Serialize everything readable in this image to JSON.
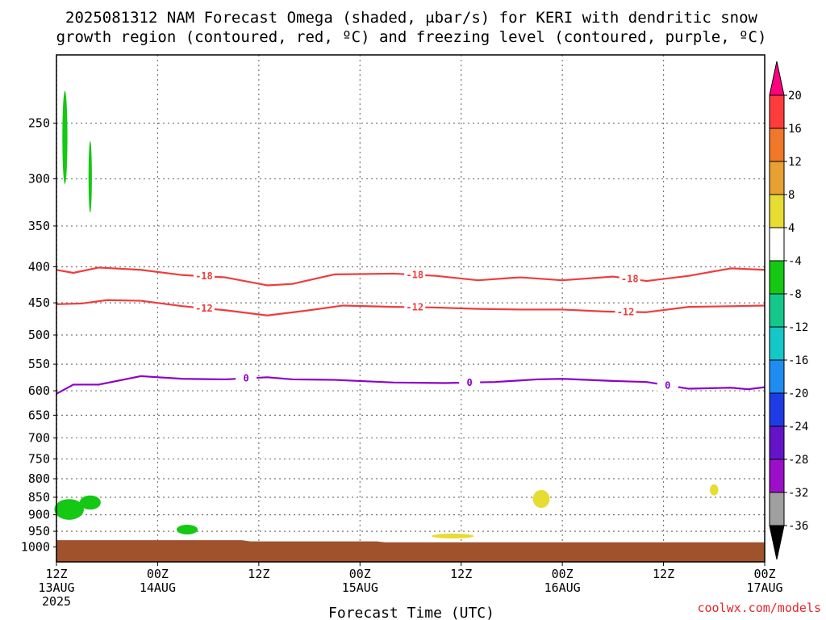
{
  "title_line1": "2025081312 NAM Forecast Omega (shaded, μbar/s) for KERI with dendritic snow",
  "title_line2": "growth region (contoured, red, ºC) and freezing level (contoured, purple, ºC)",
  "credit": "coolwx.com/models",
  "chart_data": {
    "type": "contour",
    "title": "2025081312 NAM Forecast Omega (shaded, μbar/s) for KERI with dendritic snow growth region (contoured, red, ºC) and freezing level (contoured, purple, ºC)",
    "xlabel": "Forecast Time (UTC)",
    "ylabel": "",
    "x_unit": "forecast hour",
    "xlim": [
      0,
      84
    ],
    "y_unit": "hPa",
    "y_scale": "log",
    "ylim": [
      1050,
      200
    ],
    "grid": true,
    "x_ticks": [
      {
        "hour": 0,
        "lines": [
          "12Z",
          "13AUG",
          "2025"
        ]
      },
      {
        "hour": 12,
        "lines": [
          "00Z",
          "14AUG"
        ]
      },
      {
        "hour": 24,
        "lines": [
          "12Z"
        ]
      },
      {
        "hour": 36,
        "lines": [
          "00Z",
          "15AUG"
        ]
      },
      {
        "hour": 48,
        "lines": [
          "12Z"
        ]
      },
      {
        "hour": 60,
        "lines": [
          "00Z",
          "16AUG"
        ]
      },
      {
        "hour": 72,
        "lines": [
          "12Z"
        ]
      },
      {
        "hour": 84,
        "lines": [
          "00Z",
          "17AUG"
        ]
      }
    ],
    "y_ticks": [
      250,
      300,
      350,
      400,
      450,
      500,
      550,
      600,
      650,
      700,
      750,
      800,
      850,
      900,
      950,
      1000
    ],
    "colorbar": {
      "labels": [
        "20",
        "16",
        "12",
        "8",
        "4",
        "-4",
        "-8",
        "-12",
        "-16",
        "-20",
        "-24",
        "-28",
        "-32",
        "-36"
      ],
      "colors": [
        "#ff0080",
        "#ff3c3c",
        "#f07828",
        "#e8a032",
        "#e6dc32",
        "#ffffff",
        "#14c814",
        "#14c88c",
        "#14c8c8",
        "#1e8cf0",
        "#1e3ce6",
        "#6414c8",
        "#9b0fc8",
        "#a0a0a0",
        "#000000"
      ]
    },
    "contours": [
      {
        "series": "red",
        "label": "-18",
        "color": "#f03c3c",
        "points": [
          [
            0,
            404
          ],
          [
            2,
            408
          ],
          [
            5,
            401
          ],
          [
            10,
            404
          ],
          [
            15,
            411
          ],
          [
            20,
            414
          ],
          [
            25,
            425
          ],
          [
            28,
            423
          ],
          [
            33,
            410
          ],
          [
            40,
            409
          ],
          [
            45,
            412
          ],
          [
            50,
            418
          ],
          [
            55,
            414
          ],
          [
            60,
            418
          ],
          [
            66,
            413
          ],
          [
            70,
            419
          ],
          [
            75,
            412
          ],
          [
            80,
            402
          ],
          [
            84,
            404
          ]
        ]
      },
      {
        "series": "red",
        "label": "-12",
        "color": "#f03c3c",
        "points": [
          [
            0,
            452
          ],
          [
            3,
            451
          ],
          [
            6,
            446
          ],
          [
            10,
            447
          ],
          [
            15,
            455
          ],
          [
            20,
            461
          ],
          [
            25,
            469
          ],
          [
            30,
            461
          ],
          [
            34,
            454
          ],
          [
            40,
            456
          ],
          [
            45,
            457
          ],
          [
            50,
            459
          ],
          [
            55,
            460
          ],
          [
            60,
            460
          ],
          [
            65,
            463
          ],
          [
            70,
            464
          ],
          [
            75,
            456
          ],
          [
            80,
            455
          ],
          [
            84,
            454
          ]
        ]
      },
      {
        "series": "purple",
        "label": "0",
        "color": "#8c00c8",
        "points": [
          [
            0,
            606
          ],
          [
            2,
            588
          ],
          [
            5,
            588
          ],
          [
            10,
            572
          ],
          [
            15,
            577
          ],
          [
            20,
            578
          ],
          [
            25,
            574
          ],
          [
            28,
            578
          ],
          [
            33,
            579
          ],
          [
            40,
            584
          ],
          [
            46,
            585
          ],
          [
            52,
            583
          ],
          [
            57,
            578
          ],
          [
            60,
            577
          ],
          [
            66,
            581
          ],
          [
            70,
            583
          ],
          [
            75,
            596
          ],
          [
            80,
            594
          ],
          [
            82,
            597
          ],
          [
            84,
            593
          ]
        ]
      }
    ],
    "shaded": [
      {
        "name": "green",
        "color": "#14c814",
        "value_range": [
          -8,
          -4
        ],
        "regions": [
          {
            "center": [
              1,
              265
            ],
            "size": [
              0.6,
              80
            ]
          },
          {
            "center": [
              4,
              300
            ],
            "size": [
              0.4,
              70
            ]
          },
          {
            "center": [
              1.5,
              885
            ],
            "size": [
              3.5,
              60
            ]
          },
          {
            "center": [
              4,
              865
            ],
            "size": [
              2.5,
              40
            ]
          },
          {
            "center": [
              15.5,
              945
            ],
            "size": [
              2.5,
              30
            ]
          }
        ]
      },
      {
        "name": "yellow",
        "color": "#e6dc32",
        "value_range": [
          4,
          8
        ],
        "regions": [
          {
            "center": [
              47,
              965
            ],
            "size": [
              5,
              10
            ]
          },
          {
            "center": [
              57.5,
              855
            ],
            "size": [
              2,
              50
            ]
          },
          {
            "center": [
              78,
              830
            ],
            "size": [
              1,
              30
            ]
          }
        ]
      }
    ],
    "terrain": {
      "color": "#a0522d",
      "points": [
        [
          0,
          978
        ],
        [
          22,
          978
        ],
        [
          23,
          982
        ],
        [
          38,
          982
        ],
        [
          39,
          985
        ],
        [
          84,
          985
        ]
      ]
    }
  }
}
